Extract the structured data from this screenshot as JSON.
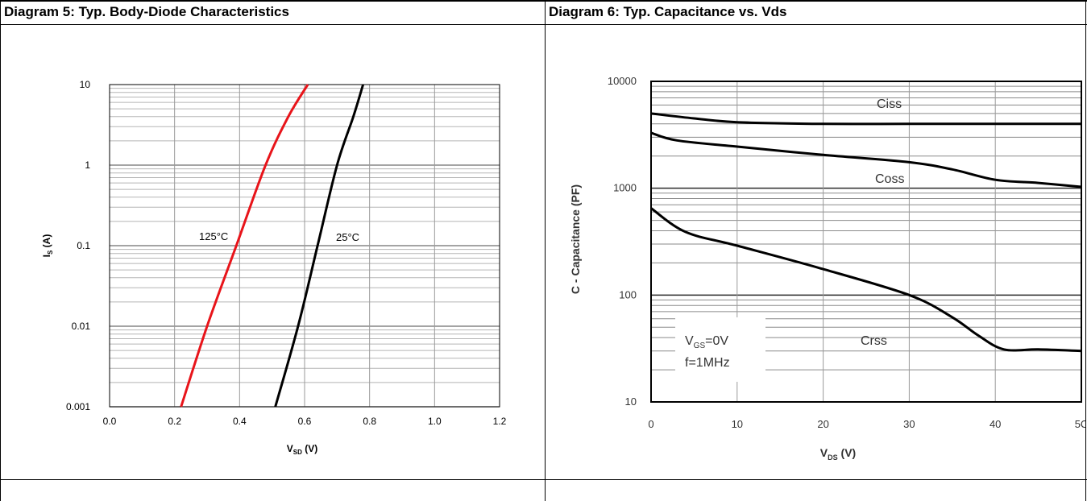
{
  "panels": [
    {
      "title": "Diagram 5: Typ. Body-Diode Characteristics"
    },
    {
      "title": "Diagram 6: Typ. Capacitance vs. Vds"
    }
  ],
  "chart_data": [
    {
      "type": "line",
      "title": "Diagram 5: Typ. Body-Diode Characteristics",
      "xlabel_main": "V",
      "xlabel_sub": "SD",
      "xlabel_unit": " (V)",
      "ylabel_main": "I",
      "ylabel_sub": "S",
      "ylabel_unit": " (A)",
      "xlim": [
        0.0,
        1.2
      ],
      "ylim": [
        0.001,
        10
      ],
      "yscale": "log",
      "grid": true,
      "xticks": [
        "0.0",
        "0.2",
        "0.4",
        "0.6",
        "0.8",
        "1.0",
        "1.2"
      ],
      "yticks": [
        "0.001",
        "0.01",
        "0.1",
        "1",
        "10"
      ],
      "series": [
        {
          "name": "125°C",
          "color": "#e8141a",
          "x": [
            0.22,
            0.3,
            0.39,
            0.48,
            0.55,
            0.61
          ],
          "y": [
            0.001,
            0.01,
            0.1,
            1,
            4,
            10
          ]
        },
        {
          "name": "25°C",
          "color": "#000000",
          "x": [
            0.51,
            0.58,
            0.64,
            0.7,
            0.75,
            0.78
          ],
          "y": [
            0.001,
            0.01,
            0.1,
            1,
            4,
            10
          ]
        }
      ]
    },
    {
      "type": "line",
      "title": "Diagram 6: Typ. Capacitance vs. Vds",
      "xlabel_main": "V",
      "xlabel_sub": "DS",
      "xlabel_unit": " (V)",
      "ylabel": "C - Capacitance (PF)",
      "xlim": [
        0,
        50
      ],
      "ylim": [
        10,
        10000
      ],
      "yscale": "log",
      "grid": true,
      "xticks": [
        "0",
        "10",
        "20",
        "30",
        "40",
        "5C"
      ],
      "yticks": [
        "10",
        "100",
        "1000",
        "10000"
      ],
      "annotation": {
        "line1_main": "V",
        "line1_sub": "GS",
        "line1_rest": "=0V",
        "line2": "f=1MHz"
      },
      "series": [
        {
          "name": "Ciss",
          "color": "#000000",
          "x": [
            0,
            5,
            10,
            20,
            30,
            40,
            50
          ],
          "y": [
            5000,
            4500,
            4150,
            4000,
            4000,
            4000,
            4000
          ]
        },
        {
          "name": "Coss",
          "color": "#000000",
          "x": [
            0,
            3,
            10,
            20,
            30,
            35,
            40,
            45,
            50
          ],
          "y": [
            3300,
            2800,
            2450,
            2050,
            1750,
            1500,
            1200,
            1120,
            1030
          ]
        },
        {
          "name": "Crss",
          "color": "#000000",
          "x": [
            0,
            4,
            10,
            20,
            30,
            35,
            38,
            41,
            45,
            50
          ],
          "y": [
            650,
            390,
            290,
            175,
            100,
            62,
            42,
            31,
            31,
            30
          ]
        }
      ]
    }
  ]
}
